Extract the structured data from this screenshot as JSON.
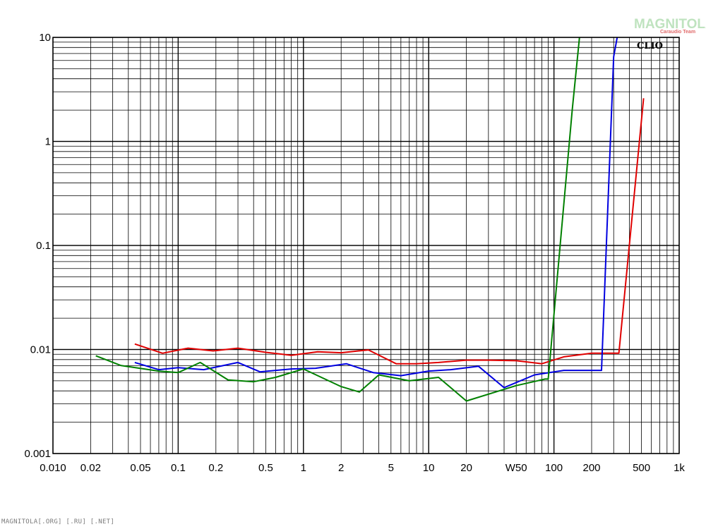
{
  "watermark": {
    "logo_text": "MAGNITOLA",
    "logo_subtext": "Caraudio Team"
  },
  "footer": {
    "text": "MAGNITOLA[.ORG] [.RU] [.NET]"
  },
  "chart_data": {
    "type": "line",
    "x_scale": "log",
    "y_scale": "log",
    "xlim": [
      0.01,
      1000
    ],
    "ylim": [
      0.001,
      10
    ],
    "grid": true,
    "brand_label": "CLIO",
    "x_tick_labels": [
      {
        "v": 0.01,
        "label": "0.010"
      },
      {
        "v": 0.02,
        "label": "0.02"
      },
      {
        "v": 0.05,
        "label": "0.05"
      },
      {
        "v": 0.1,
        "label": "0.1"
      },
      {
        "v": 0.2,
        "label": "0.2"
      },
      {
        "v": 0.5,
        "label": "0.5"
      },
      {
        "v": 1,
        "label": "1"
      },
      {
        "v": 2,
        "label": "2"
      },
      {
        "v": 5,
        "label": "5"
      },
      {
        "v": 10,
        "label": "10"
      },
      {
        "v": 20,
        "label": "20"
      },
      {
        "v": 50,
        "label": "W50"
      },
      {
        "v": 100,
        "label": "100"
      },
      {
        "v": 200,
        "label": "200"
      },
      {
        "v": 500,
        "label": "500"
      },
      {
        "v": 1000,
        "label": "1k"
      }
    ],
    "y_tick_labels": [
      {
        "v": 10,
        "label": "10"
      },
      {
        "v": 1,
        "label": "1"
      },
      {
        "v": 0.1,
        "label": "0.1"
      },
      {
        "v": 0.01,
        "label": "0.01"
      },
      {
        "v": 0.001,
        "label": "0.001"
      }
    ],
    "series": [
      {
        "color": "#e00000",
        "x": [
          0.045,
          0.075,
          0.12,
          0.19,
          0.3,
          0.5,
          0.8,
          1.3,
          2,
          3.3,
          5.5,
          8,
          12,
          20,
          30,
          50,
          80,
          120,
          200,
          330,
          520
        ],
        "y": [
          0.0113,
          0.0092,
          0.0103,
          0.0097,
          0.0103,
          0.0094,
          0.0088,
          0.0095,
          0.0093,
          0.0099,
          0.0073,
          0.0073,
          0.0075,
          0.0079,
          0.0079,
          0.0078,
          0.0073,
          0.0085,
          0.0092,
          0.0092,
          2.6
        ]
      },
      {
        "color": "#0000e0",
        "x": [
          0.045,
          0.07,
          0.1,
          0.16,
          0.3,
          0.45,
          0.8,
          1.25,
          2.2,
          3.6,
          6,
          10,
          15,
          25,
          40,
          70,
          120,
          240,
          300,
          320
        ],
        "y": [
          0.0075,
          0.0064,
          0.0067,
          0.0064,
          0.0075,
          0.0061,
          0.0065,
          0.0066,
          0.0073,
          0.006,
          0.0056,
          0.0062,
          0.0064,
          0.0069,
          0.0043,
          0.0057,
          0.0063,
          0.0063,
          6.5,
          10
        ]
      },
      {
        "color": "#008000",
        "x": [
          0.022,
          0.035,
          0.07,
          0.1,
          0.15,
          0.25,
          0.4,
          0.6,
          1,
          2,
          2.8,
          4,
          7,
          12,
          20,
          50,
          85,
          90,
          140,
          160
        ],
        "y": [
          0.0087,
          0.007,
          0.0062,
          0.006,
          0.0075,
          0.0051,
          0.0049,
          0.0054,
          0.0065,
          0.0044,
          0.0039,
          0.0057,
          0.005,
          0.0054,
          0.0032,
          0.0045,
          0.0052,
          0.0052,
          2,
          10
        ]
      }
    ]
  }
}
